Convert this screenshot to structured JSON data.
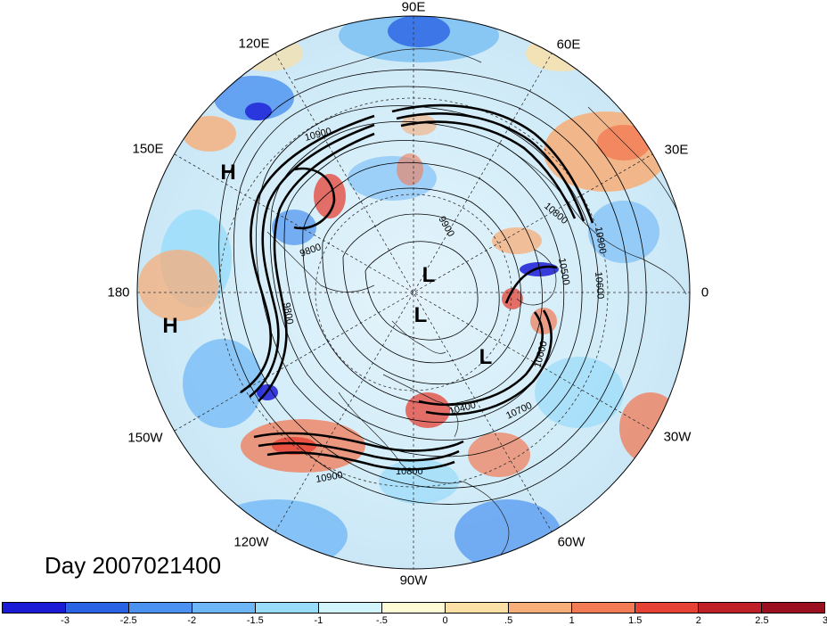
{
  "title": "Day 2007021400",
  "longitude_labels": [
    {
      "text": "90E",
      "angle": 90
    },
    {
      "text": "60E",
      "angle": 60
    },
    {
      "text": "30E",
      "angle": 30
    },
    {
      "text": "0",
      "angle": 0
    },
    {
      "text": "30W",
      "angle": -30
    },
    {
      "text": "60W",
      "angle": -60
    },
    {
      "text": "90W",
      "angle": -90
    },
    {
      "text": "120W",
      "angle": -120
    },
    {
      "text": "150W",
      "angle": -150
    },
    {
      "text": "180",
      "angle": 180
    },
    {
      "text": "150E",
      "angle": 150
    },
    {
      "text": "120E",
      "angle": 120
    }
  ],
  "pressure_centers": [
    {
      "type": "H",
      "label": "H",
      "lon": 145,
      "lat": 30
    },
    {
      "type": "H",
      "label": "H",
      "lon": 169,
      "lat": 20
    },
    {
      "type": "L",
      "label": "L",
      "lon": 70,
      "lat": 86
    },
    {
      "type": "L",
      "label": "L",
      "lon": 170,
      "lat": 88
    },
    {
      "type": "L",
      "label": "L",
      "lon": -20,
      "lat": 77
    }
  ],
  "contour_labels": [
    "10900",
    "9800",
    "9800",
    "9900",
    "10900",
    "10500",
    "10600",
    "10600",
    "10400",
    "10700",
    "10800",
    "10900",
    "10800"
  ],
  "colorbar": {
    "colors": [
      "#1b1bd6",
      "#2a62e4",
      "#4a91f0",
      "#6cb6f7",
      "#99dcfa",
      "#d2f4fb",
      "#fdfbd6",
      "#fbe0a6",
      "#f7ae78",
      "#f27a55",
      "#e64135",
      "#bf1f27",
      "#9b0f20"
    ],
    "tick_labels": [
      "-3",
      "-2.5",
      "-2",
      "-1.5",
      "-1",
      "-.5",
      "0",
      ".5",
      "1",
      "1.5",
      "2",
      "2.5",
      "3"
    ]
  }
}
